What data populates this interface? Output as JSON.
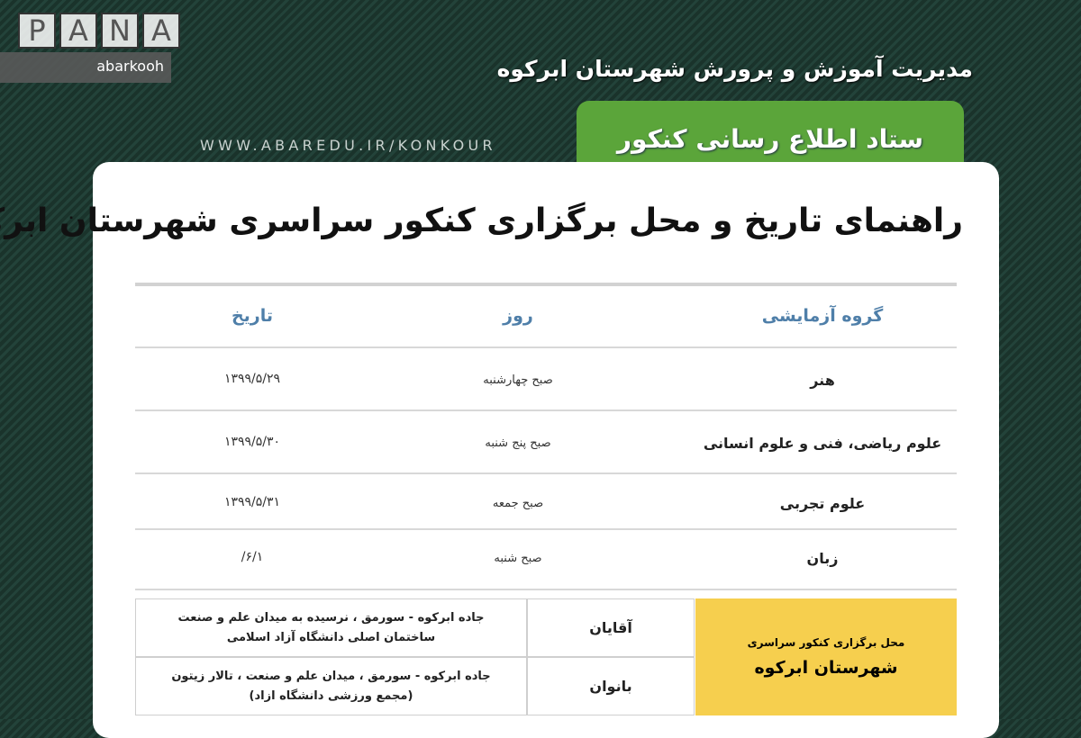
{
  "header": {
    "organization": "مدیریت آموزش و پرورش شهرستان ابرکوه",
    "banner": "ستاد اطلاع رسانی کنکور سراسری",
    "url": "WWW.ABAREDU.IR/KONKOUR"
  },
  "title": "راهنمای تاریخ و محل برگزاری کنکور سراسری شهرستان ابرکوه",
  "schedule": {
    "columns": [
      "گروه آزمایشی",
      "روز",
      "تاریخ"
    ],
    "rows": [
      {
        "group": "هنر",
        "day": "صبح چهارشنبه",
        "date": "۱۳۹۹/۵/۲۹"
      },
      {
        "group": "علوم ریاضی، فنی و علوم انسانی",
        "day": "صبح پنج شنبه",
        "date": "۱۳۹۹/۵/۳۰"
      },
      {
        "group": "علوم تجربی",
        "day": "صبح جمعه",
        "date": "۱۳۹۹/۵/۳۱"
      },
      {
        "group": "زبان",
        "day": "صبح شنبه",
        "date": "/۶/۱"
      }
    ]
  },
  "venue": {
    "label_line1": "محل برگزاری کنکور سراسری",
    "label_line2": "شهرستان ابرکوه",
    "men": {
      "label": "آقایان",
      "address_line1": "جاده ابرکوه - سورمق ، نرسیده به میدان علم و صنعت",
      "address_line2": "ساختمان اصلی دانشگاه آزاد اسلامی"
    },
    "women": {
      "label": "بانوان",
      "address_line1": "جاده ابرکوه - سورمق ، میدان علم و صنعت ، تالار زیتون",
      "address_line2": "(مجمع ورزشی دانشگاه ازاد)"
    }
  },
  "watermark": {
    "logo": "PANA",
    "tag": "abarkooh"
  },
  "colors": {
    "background": "#1e3a31",
    "banner": "#5ba53a",
    "header_text": "#4f7fa9",
    "venue_highlight": "#f6cf4e"
  }
}
